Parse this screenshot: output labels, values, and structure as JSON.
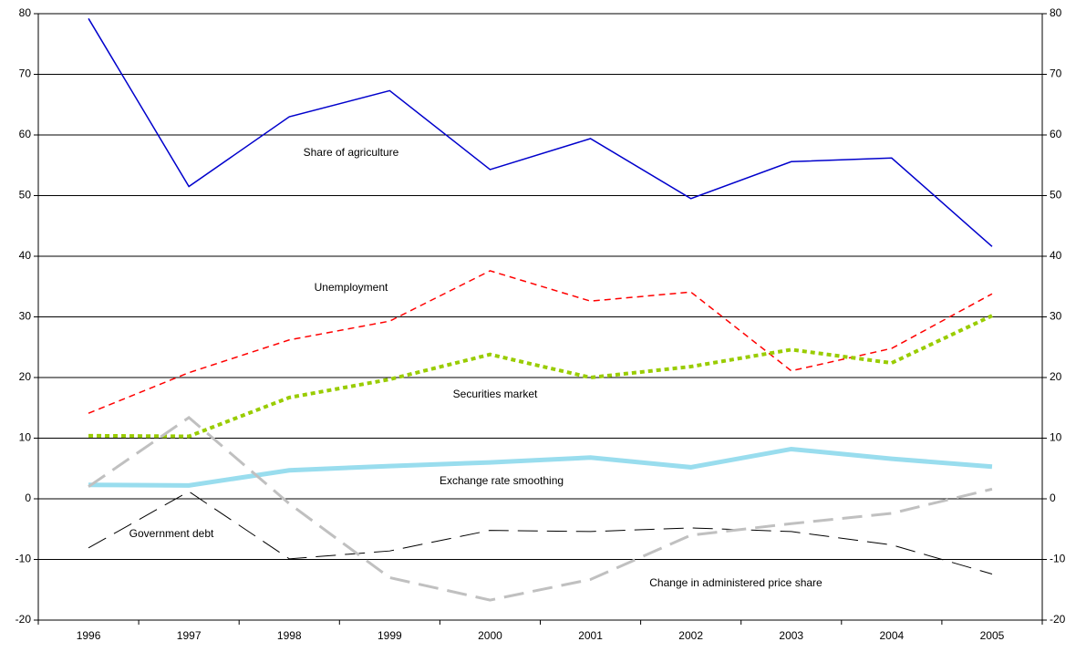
{
  "chart_data": {
    "type": "line",
    "categories": [
      "1996",
      "1997",
      "1998",
      "1999",
      "2000",
      "2001",
      "2002",
      "2003",
      "2004",
      "2005"
    ],
    "series": [
      {
        "name": "Share of agriculture",
        "color": "#0000cc",
        "values": [
          79.2,
          51.5,
          63,
          67.3,
          54.3,
          59.4,
          49.5,
          55.6,
          56.2,
          41.6
        ]
      },
      {
        "name": "Unemployment",
        "color": "#ff0000",
        "values": [
          14.1,
          20.8,
          26.2,
          29.3,
          37.6,
          32.6,
          34.1,
          21.1,
          24.8,
          33.8
        ]
      },
      {
        "name": "Securities market",
        "color": "#99cc00",
        "values": [
          10.4,
          10.3,
          16.7,
          19.7,
          23.8,
          20.0,
          21.8,
          24.6,
          22.4,
          30.2
        ]
      },
      {
        "name": "Exchange rate smoothing",
        "color": "#99ddee",
        "values": [
          2.3,
          2.2,
          4.7,
          5.4,
          6.0,
          6.8,
          5.2,
          8.2,
          6.6,
          5.3
        ]
      },
      {
        "name": "Government debt",
        "color": "#000000",
        "values": [
          -8.1,
          1.2,
          -9.9,
          -8.6,
          -5.2,
          -5.4,
          -4.8,
          -5.4,
          -7.6,
          -12.4
        ]
      },
      {
        "name": "Change in administered price share",
        "color": "#c0c0c0",
        "values": [
          2.0,
          13.4,
          -0.8,
          -13.0,
          -16.7,
          -13.3,
          -6.0,
          -4.1,
          -2.4,
          1.6
        ]
      }
    ],
    "ylim": [
      -20,
      80
    ],
    "yticks": [
      -20,
      -10,
      0,
      10,
      20,
      30,
      40,
      50,
      60,
      70,
      80
    ],
    "y2lim": [
      -20,
      80
    ],
    "y2ticks": [
      -20,
      -10,
      0,
      10,
      20,
      30,
      40,
      50,
      60,
      70,
      80
    ],
    "grid": true
  }
}
